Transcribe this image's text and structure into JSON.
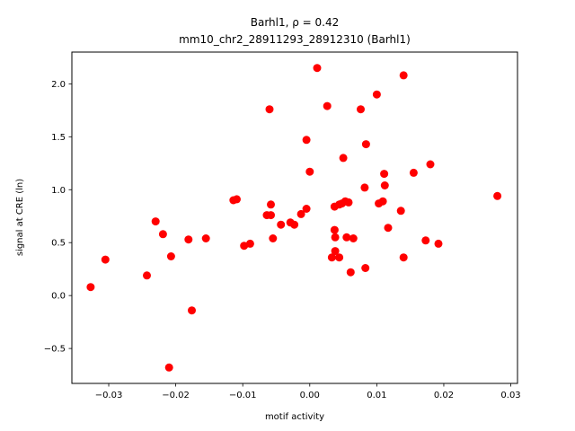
{
  "chart_data": {
    "type": "scatter",
    "title_line1": "Barhl1, ρ = 0.42",
    "title_line2": "mm10_chr2_28911293_28912310 (Barhl1)",
    "xlabel": "motif activity",
    "ylabel": "signal at CRE (ln)",
    "xlim": [
      -0.0355,
      0.031
    ],
    "ylim": [
      -0.83,
      2.3
    ],
    "grid": false,
    "marker_color": "#ff0000",
    "x_ticks": [
      {
        "value": -0.03,
        "label": "−0.03"
      },
      {
        "value": -0.02,
        "label": "−0.02"
      },
      {
        "value": -0.01,
        "label": "−0.01"
      },
      {
        "value": 0.0,
        "label": "0.00"
      },
      {
        "value": 0.01,
        "label": "0.01"
      },
      {
        "value": 0.02,
        "label": "0.02"
      },
      {
        "value": 0.03,
        "label": "0.03"
      }
    ],
    "y_ticks": [
      {
        "value": -0.5,
        "label": "−0.5"
      },
      {
        "value": 0.0,
        "label": "0.0"
      },
      {
        "value": 0.5,
        "label": "0.5"
      },
      {
        "value": 1.0,
        "label": "1.0"
      },
      {
        "value": 1.5,
        "label": "1.5"
      },
      {
        "value": 2.0,
        "label": "2.0"
      }
    ],
    "points": [
      {
        "x": -0.0327,
        "y": 0.08
      },
      {
        "x": -0.0305,
        "y": 0.34
      },
      {
        "x": -0.0243,
        "y": 0.19
      },
      {
        "x": -0.023,
        "y": 0.7
      },
      {
        "x": -0.0219,
        "y": 0.58
      },
      {
        "x": -0.021,
        "y": -0.68
      },
      {
        "x": -0.0207,
        "y": 0.37
      },
      {
        "x": -0.0181,
        "y": 0.53
      },
      {
        "x": -0.0176,
        "y": -0.14
      },
      {
        "x": -0.0155,
        "y": 0.54
      },
      {
        "x": -0.0114,
        "y": 0.9
      },
      {
        "x": -0.0109,
        "y": 0.91
      },
      {
        "x": -0.0098,
        "y": 0.47
      },
      {
        "x": -0.0089,
        "y": 0.49
      },
      {
        "x": -0.0064,
        "y": 0.76
      },
      {
        "x": -0.006,
        "y": 1.76
      },
      {
        "x": -0.0058,
        "y": 0.76
      },
      {
        "x": -0.0058,
        "y": 0.86
      },
      {
        "x": -0.0055,
        "y": 0.54
      },
      {
        "x": -0.0043,
        "y": 0.67
      },
      {
        "x": -0.0029,
        "y": 0.69
      },
      {
        "x": -0.0023,
        "y": 0.67
      },
      {
        "x": -0.0013,
        "y": 0.77
      },
      {
        "x": -0.0005,
        "y": 0.82
      },
      {
        "x": -0.0005,
        "y": 1.47
      },
      {
        "x": 0.0,
        "y": 1.17
      },
      {
        "x": 0.0011,
        "y": 2.15
      },
      {
        "x": 0.0026,
        "y": 1.79
      },
      {
        "x": 0.0033,
        "y": 0.36
      },
      {
        "x": 0.0037,
        "y": 0.84
      },
      {
        "x": 0.0037,
        "y": 0.62
      },
      {
        "x": 0.0038,
        "y": 0.55
      },
      {
        "x": 0.0038,
        "y": 0.42
      },
      {
        "x": 0.0044,
        "y": 0.36
      },
      {
        "x": 0.0044,
        "y": 0.86
      },
      {
        "x": 0.0048,
        "y": 0.87
      },
      {
        "x": 0.005,
        "y": 1.3
      },
      {
        "x": 0.0053,
        "y": 0.89
      },
      {
        "x": 0.0055,
        "y": 0.55
      },
      {
        "x": 0.0058,
        "y": 0.88
      },
      {
        "x": 0.0061,
        "y": 0.22
      },
      {
        "x": 0.0065,
        "y": 0.54
      },
      {
        "x": 0.0076,
        "y": 1.76
      },
      {
        "x": 0.0082,
        "y": 1.02
      },
      {
        "x": 0.0083,
        "y": 0.26
      },
      {
        "x": 0.0084,
        "y": 1.43
      },
      {
        "x": 0.01,
        "y": 1.9
      },
      {
        "x": 0.0103,
        "y": 0.87
      },
      {
        "x": 0.0109,
        "y": 0.89
      },
      {
        "x": 0.0111,
        "y": 1.15
      },
      {
        "x": 0.0112,
        "y": 1.04
      },
      {
        "x": 0.0117,
        "y": 0.64
      },
      {
        "x": 0.0136,
        "y": 0.8
      },
      {
        "x": 0.014,
        "y": 0.36
      },
      {
        "x": 0.014,
        "y": 2.08
      },
      {
        "x": 0.0155,
        "y": 1.16
      },
      {
        "x": 0.0173,
        "y": 0.52
      },
      {
        "x": 0.018,
        "y": 1.24
      },
      {
        "x": 0.0192,
        "y": 0.49
      },
      {
        "x": 0.028,
        "y": 0.94
      }
    ]
  }
}
